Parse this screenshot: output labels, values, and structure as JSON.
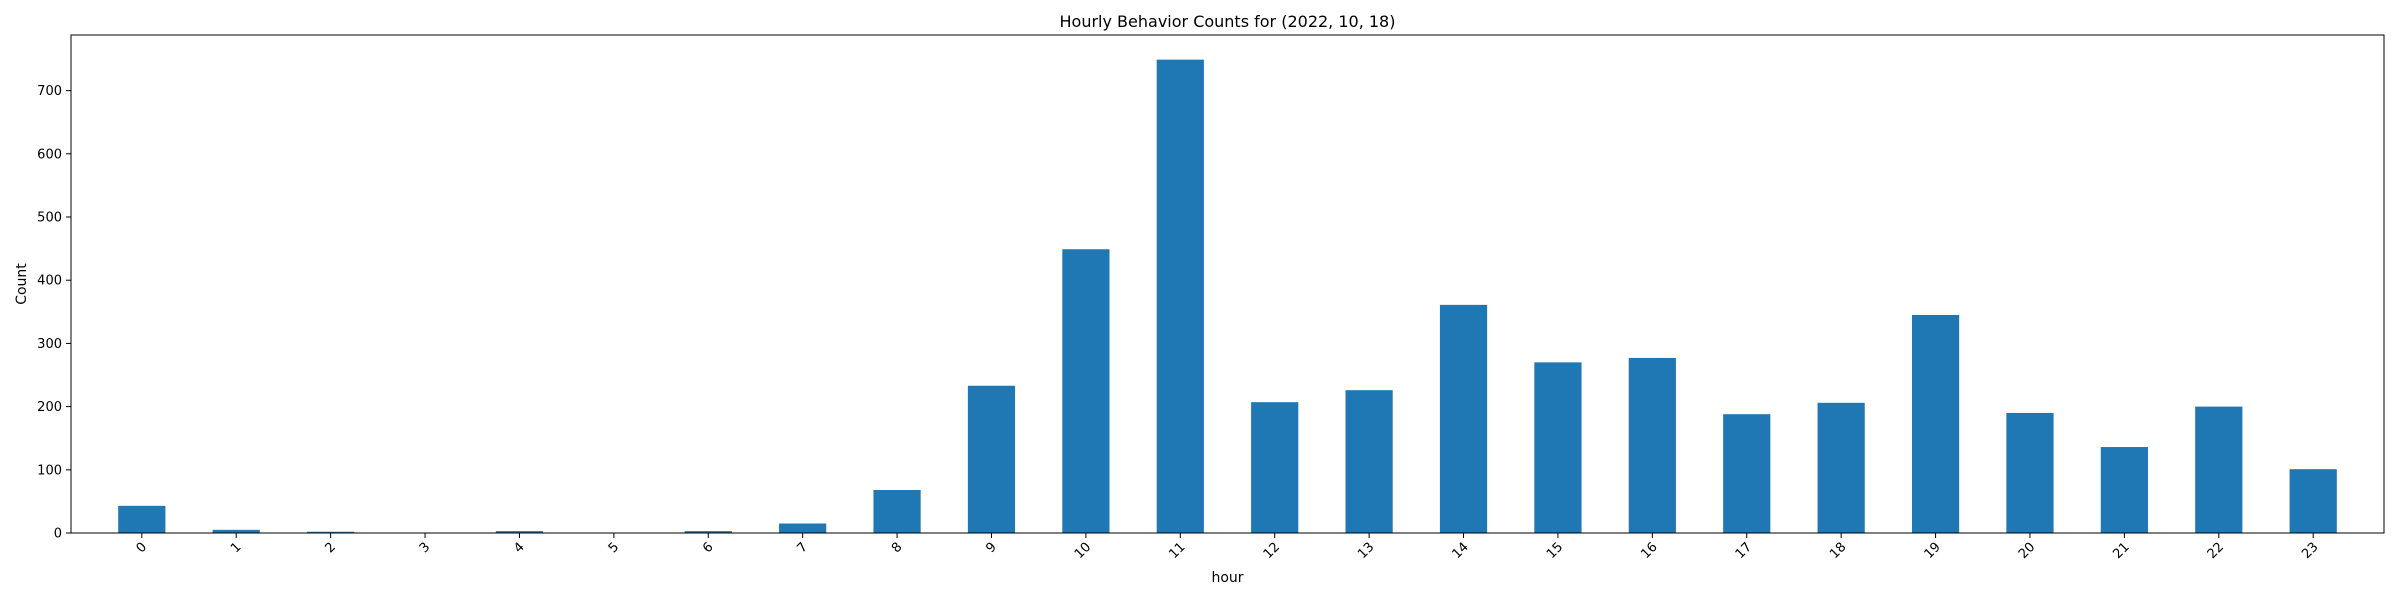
{
  "chart_data": {
    "type": "bar",
    "title": "Hourly Behavior Counts for (2022, 10, 18)",
    "xlabel": "hour",
    "ylabel": "Count",
    "categories": [
      "0",
      "1",
      "2",
      "3",
      "4",
      "5",
      "6",
      "7",
      "8",
      "9",
      "10",
      "11",
      "12",
      "13",
      "14",
      "15",
      "16",
      "17",
      "18",
      "19",
      "20",
      "21",
      "22",
      "23"
    ],
    "values": [
      43,
      5,
      2,
      0,
      3,
      0,
      3,
      15,
      68,
      233,
      449,
      749,
      207,
      226,
      361,
      270,
      277,
      188,
      206,
      345,
      190,
      136,
      200,
      101
    ],
    "ylim": [
      0,
      788
    ],
    "yticks": [
      0,
      100,
      200,
      300,
      400,
      500,
      600,
      700
    ],
    "bar_color": "#1f77b4",
    "grid": false,
    "legend": "none"
  }
}
